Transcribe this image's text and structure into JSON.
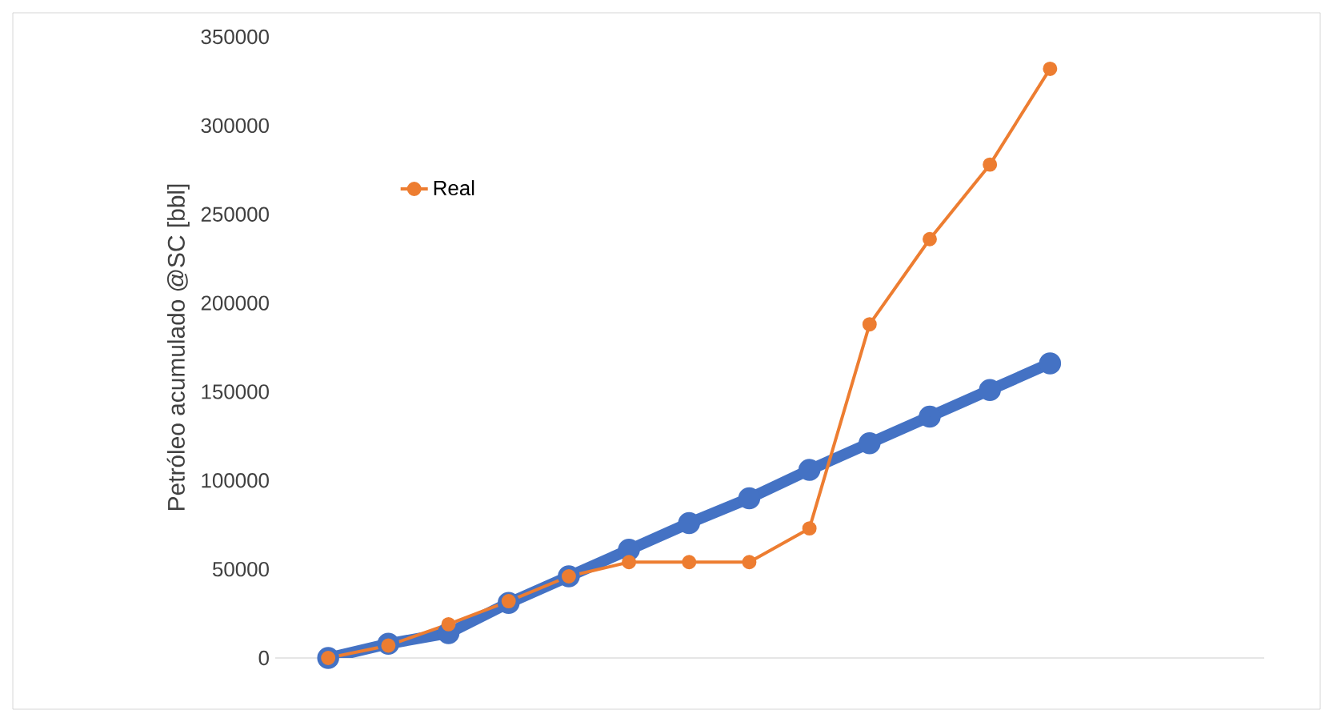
{
  "chart_data": {
    "type": "line",
    "ylabel": "Petróleo acumulado @SC [bbl]",
    "categories": [
      null,
      null,
      null,
      null,
      null,
      null,
      null,
      null,
      null,
      null,
      null,
      null,
      null
    ],
    "ylim": [
      0,
      350000
    ],
    "yticks": [
      0,
      50000,
      100000,
      150000,
      200000,
      250000,
      300000,
      350000
    ],
    "legend": "top left",
    "marker": "circle",
    "tick_labels": "y",
    "series": [
      {
        "color": "#4472c4",
        "values": [
          0,
          8000,
          14000,
          31000,
          46000,
          61000,
          76000,
          90000,
          106000,
          121000,
          136000,
          151000,
          166000
        ]
      },
      {
        "name": "Real",
        "color": "#ed7d31",
        "values": [
          0,
          7000,
          19000,
          32000,
          46000,
          54000,
          54000,
          54000,
          73000,
          188000,
          236000,
          278000,
          332000
        ]
      }
    ]
  }
}
